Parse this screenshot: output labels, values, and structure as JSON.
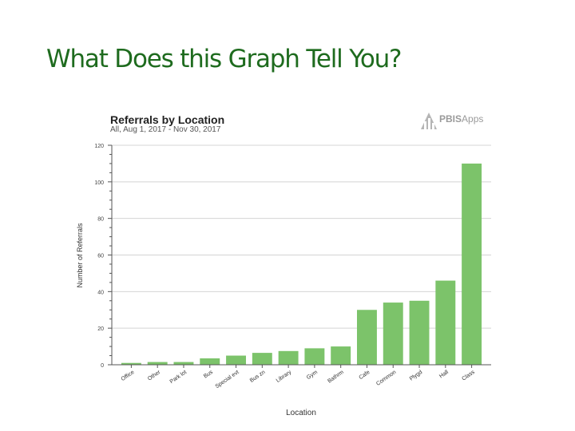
{
  "slide": {
    "title": "What Does this Graph Tell You?"
  },
  "logo": {
    "text_bold": "PBIS",
    "text_light": "Apps",
    "icon": "pbis-apps-logo-icon"
  },
  "chart_data": {
    "type": "bar",
    "title": "Referrals by Location",
    "subtitle": "All, Aug 1, 2017 - Nov 30, 2017",
    "xlabel": "Location",
    "ylabel": "Number of Referrals",
    "ylim": [
      0,
      120
    ],
    "yticks": [
      0,
      20,
      40,
      60,
      80,
      100,
      120
    ],
    "grid": true,
    "legend": "none",
    "bar_color": "#7cc36a",
    "categories": [
      "Office",
      "Other",
      "Park lot",
      "Bus",
      "Special evt",
      "Bus zn",
      "Library",
      "Gym",
      "Bathrm",
      "Cafe",
      "Common",
      "Plygd",
      "Hall",
      "Class"
    ],
    "values": [
      1,
      1.5,
      1.5,
      3.5,
      5,
      6.5,
      7.5,
      9,
      10,
      30,
      34,
      35,
      46,
      110
    ]
  }
}
